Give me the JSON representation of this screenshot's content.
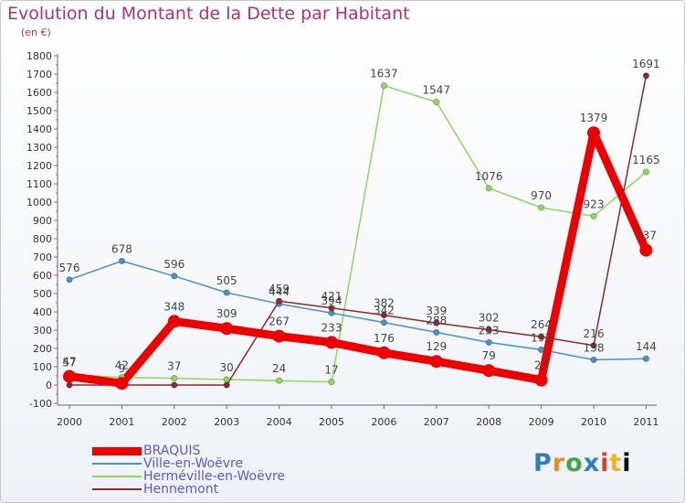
{
  "chart_data": {
    "type": "line",
    "title": "Evolution du Montant de la Dette par Habitant",
    "subtitle": "(en €)",
    "xlabel": "",
    "ylabel": "",
    "categories": [
      "2000",
      "2001",
      "2002",
      "2003",
      "2004",
      "2005",
      "2006",
      "2007",
      "2008",
      "2009",
      "2010",
      "2011"
    ],
    "ylim": [
      -100,
      1800
    ],
    "yticks": [
      -100,
      0,
      100,
      200,
      300,
      400,
      500,
      600,
      700,
      800,
      900,
      1000,
      1100,
      1200,
      1300,
      1400,
      1500,
      1600,
      1700,
      1800
    ],
    "series": [
      {
        "name": "BRAQUIS",
        "color": "#ee0000",
        "values": [
          47,
          9,
          348,
          309,
          267,
          233,
          176,
          129,
          79,
          27,
          1379,
          737
        ],
        "labels": [
          "47",
          "9",
          "348",
          "309",
          "267",
          "233",
          "176",
          "129",
          "79",
          "27",
          "1379",
          "737"
        ]
      },
      {
        "name": "Ville-en-Woëvre",
        "color": "#4d8fc8",
        "values": [
          576,
          678,
          596,
          505,
          444,
          394,
          342,
          288,
          233,
          193,
          138,
          144
        ],
        "labels": [
          "576",
          "678",
          "596",
          "505",
          "444",
          "394",
          "342",
          "288",
          "233",
          "193",
          "138",
          "144"
        ]
      },
      {
        "name": "Herméville-en-Woëvre",
        "color": "#8fd85e",
        "values": [
          57,
          42,
          37,
          30,
          24,
          17,
          1637,
          1547,
          1076,
          970,
          923,
          1165
        ],
        "labels": [
          "57",
          "42",
          "37",
          "30",
          "24",
          "17",
          "1637",
          "1547",
          "1076",
          "970",
          "923",
          "1165"
        ]
      },
      {
        "name": "Hennemont",
        "color": "#8a2a2a",
        "values": [
          0,
          0,
          0,
          0,
          459,
          421,
          382,
          339,
          302,
          264,
          216,
          1691
        ],
        "labels": [
          "",
          "",
          "",
          "",
          "459",
          "421",
          "382",
          "339",
          "302",
          "264",
          "216",
          "1691"
        ]
      }
    ],
    "legend_position": "bottom-left",
    "grid": false
  },
  "logo": {
    "letters": [
      "P",
      "r",
      "o",
      "x",
      "i",
      "t",
      "i"
    ]
  }
}
